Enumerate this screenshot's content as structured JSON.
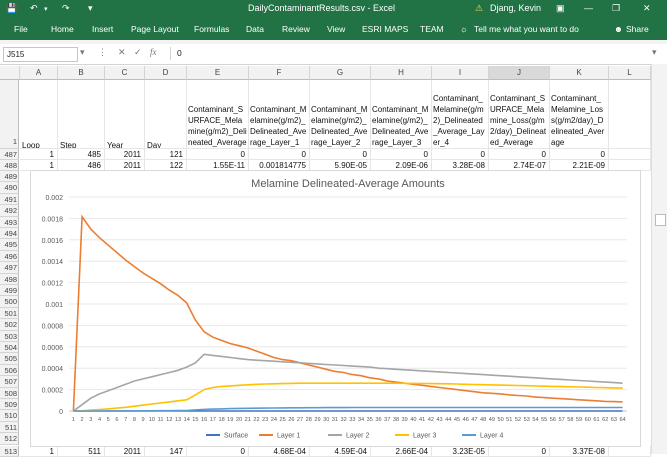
{
  "window": {
    "title": "DailyContaminantResults.csv  -  Excel",
    "warning_icon": "warning-icon",
    "user": "Djang, Kevin"
  },
  "ribbon": {
    "tabs": [
      "File",
      "Home",
      "Insert",
      "Page Layout",
      "Formulas",
      "Data",
      "Review",
      "View",
      "ESRI MAPS",
      "TEAM"
    ],
    "tell_me": "Tell me what you want to do",
    "share": "Share"
  },
  "formula_bar": {
    "name_box": "J515",
    "fx": "fx",
    "value": "0"
  },
  "columns": [
    "A",
    "B",
    "C",
    "D",
    "E",
    "F",
    "G",
    "H",
    "I",
    "J",
    "K",
    "L"
  ],
  "header_row": {
    "row_number": "1",
    "cells": [
      "Loop",
      "Step",
      "Year",
      "Day",
      "Contaminant_SURFACE_Melamine(g/m2)_Delineated_Average",
      "Contaminant_Melamine(g/m2)_Delineated_Average_Layer_1",
      "Contaminant_Melamine(g/m2)_Delineated_Average_Layer_2",
      "Contaminant_Melamine(g/m2)_Delineated_Average_Layer_3",
      "Contaminant_Melamine(g/m2)_Delineated_Average_Layer_4",
      "Contaminant_SURFACE_Melamine_Loss(g/m2/day)_Delineated_Average",
      "Contaminant_Melamine_Loss(g/m2/day)_Delineated_Average"
    ]
  },
  "rows": [
    {
      "n": "487",
      "cells": [
        "1",
        "485",
        "2011",
        "121",
        "0",
        "0",
        "0",
        "0",
        "0",
        "0",
        "0"
      ]
    },
    {
      "n": "488",
      "cells": [
        "1",
        "486",
        "2011",
        "122",
        "1.55E-11",
        "0.001814775",
        "5.90E-05",
        "2.09E-06",
        "3.28E-08",
        "2.74E-07",
        "2.21E-09"
      ]
    },
    {
      "n": "513",
      "cells": [
        "1",
        "511",
        "2011",
        "147",
        "0",
        "4.68E-04",
        "4.59E-04",
        "2.66E-04",
        "3.23E-05",
        "0",
        "3.37E-08"
      ]
    }
  ],
  "hidden_row_numbers": [
    "489",
    "490",
    "491",
    "492",
    "493",
    "494",
    "495",
    "496",
    "497",
    "498",
    "499",
    "500",
    "501",
    "502",
    "503",
    "504",
    "505",
    "506",
    "507",
    "508",
    "509",
    "510",
    "511",
    "512"
  ],
  "colors": {
    "excel_green": "#217346",
    "surface": "#4472c4",
    "layer1": "#ed7d31",
    "layer2": "#a5a5a5",
    "layer3": "#ffc000",
    "layer4": "#5b9bd5"
  },
  "chart_data": {
    "type": "line",
    "title": "Melamine Delineated-Average Amounts",
    "ylim": [
      0,
      0.002
    ],
    "yticks": [
      "0",
      "0.0002",
      "0.0004",
      "0.0006",
      "0.0008",
      "0.001",
      "0.0012",
      "0.0014",
      "0.0016",
      "0.0018",
      "0.002"
    ],
    "x": [
      1,
      2,
      3,
      4,
      5,
      6,
      7,
      8,
      9,
      10,
      11,
      12,
      13,
      14,
      15,
      16,
      17,
      18,
      19,
      20,
      21,
      22,
      23,
      24,
      25,
      26,
      27,
      28,
      29,
      30,
      31,
      32,
      33,
      34,
      35,
      36,
      37,
      38,
      39,
      40,
      41,
      42,
      43,
      44,
      45,
      46,
      47,
      48,
      49,
      50,
      51,
      52,
      53,
      54,
      55,
      56,
      57,
      58,
      59,
      60,
      61,
      62,
      63,
      64
    ],
    "series": [
      {
        "name": "Surface",
        "color": "#4472c4",
        "values": [
          0,
          0,
          0,
          0,
          0,
          0,
          0,
          0,
          0,
          0,
          0,
          0,
          0,
          0,
          0,
          0,
          0,
          0,
          0,
          0,
          0,
          0,
          0,
          0,
          0,
          0,
          0,
          0,
          0,
          0,
          0,
          0,
          0,
          0,
          0,
          0,
          0,
          0,
          0,
          0,
          0,
          0,
          0,
          0,
          0,
          0,
          0,
          0,
          0,
          0,
          0,
          0,
          0,
          0,
          0,
          0,
          0,
          0,
          0,
          0,
          0,
          0,
          0,
          0
        ]
      },
      {
        "name": "Layer 1",
        "color": "#ed7d31",
        "values": [
          0,
          0.001815,
          0.0017,
          0.00162,
          0.00155,
          0.00148,
          0.00141,
          0.00135,
          0.00129,
          0.00124,
          0.00119,
          0.00113,
          0.00108,
          0.00101,
          0.00085,
          0.00074,
          0.00069,
          0.00066,
          0.00063,
          0.00061,
          0.00059,
          0.00056,
          0.00053,
          0.0005,
          0.00048,
          0.00047,
          0.00045,
          0.00043,
          0.00041,
          0.00039,
          0.00037,
          0.00036,
          0.00034,
          0.00033,
          0.00031,
          0.0003,
          0.00028,
          0.00027,
          0.00026,
          0.00025,
          0.00024,
          0.00023,
          0.00022,
          0.00021,
          0.0002,
          0.00019,
          0.00018,
          0.00017,
          0.000165,
          0.00016,
          0.00015,
          0.000145,
          0.00014,
          0.00013,
          0.000125,
          0.00012,
          0.000115,
          0.00011,
          0.000105,
          0.0001,
          9.5e-05,
          9e-05,
          8.8e-05,
          8.5e-05
        ]
      },
      {
        "name": "Layer 2",
        "color": "#a5a5a5",
        "values": [
          0,
          5.9e-05,
          0.00012,
          0.00016,
          0.00019,
          0.00022,
          0.00025,
          0.00028,
          0.0003,
          0.00032,
          0.00034,
          0.00036,
          0.00038,
          0.00041,
          0.00045,
          0.00053,
          0.00052,
          0.00051,
          0.0005,
          0.00049,
          0.00048,
          0.000475,
          0.00047,
          0.000465,
          0.00046,
          0.000455,
          0.00045,
          0.000445,
          0.00044,
          0.000435,
          0.00043,
          0.000425,
          0.00042,
          0.000415,
          0.00041,
          0.0004,
          0.000395,
          0.00039,
          0.000385,
          0.00038,
          0.000375,
          0.00037,
          0.000365,
          0.00036,
          0.000355,
          0.00035,
          0.000345,
          0.00034,
          0.000335,
          0.00033,
          0.000325,
          0.00032,
          0.000315,
          0.00031,
          0.000305,
          0.0003,
          0.000295,
          0.00029,
          0.000285,
          0.00028,
          0.000275,
          0.00027,
          0.000265,
          0.00026
        ]
      },
      {
        "name": "Layer 3",
        "color": "#ffc000",
        "values": [
          0,
          2e-06,
          8e-06,
          1.4e-05,
          2e-05,
          2.7e-05,
          3.5e-05,
          4.5e-05,
          5.5e-05,
          6.5e-05,
          7.5e-05,
          8.5e-05,
          9.5e-05,
          0.000105,
          0.00015,
          0.0002,
          0.00022,
          0.00023,
          0.000235,
          0.00024,
          0.000245,
          0.00025,
          0.000252,
          0.000254,
          0.000256,
          0.000258,
          0.00026,
          0.00026,
          0.00026,
          0.00026,
          0.00026,
          0.00026,
          0.00026,
          0.00026,
          0.00026,
          0.00026,
          0.00026,
          0.00026,
          0.000259,
          0.000258,
          0.000257,
          0.000256,
          0.000255,
          0.000254,
          0.000252,
          0.00025,
          0.000248,
          0.000246,
          0.000244,
          0.000242,
          0.00024,
          0.000238,
          0.000236,
          0.000234,
          0.000232,
          0.00023,
          0.000228,
          0.000226,
          0.000224,
          0.000222,
          0.00022,
          0.000218,
          0.000216,
          0.000214
        ]
      },
      {
        "name": "Layer 4",
        "color": "#5b9bd5",
        "values": [
          0,
          3e-08,
          1e-07,
          2e-07,
          4e-07,
          6e-07,
          8e-07,
          1e-06,
          1.5e-06,
          2e-06,
          2.5e-06,
          3e-06,
          4e-06,
          5e-06,
          1e-05,
          1.5e-05,
          1.8e-05,
          2e-05,
          2.2e-05,
          2.4e-05,
          2.5e-05,
          2.6e-05,
          2.7e-05,
          2.8e-05,
          2.9e-05,
          3e-05,
          3e-05,
          3.1e-05,
          3.1e-05,
          3.2e-05,
          3.2e-05,
          3.2e-05,
          3.3e-05,
          3.3e-05,
          3.3e-05,
          3.3e-05,
          3.3e-05,
          3.3e-05,
          3.3e-05,
          3.3e-05,
          3.3e-05,
          3.3e-05,
          3.3e-05,
          3.3e-05,
          3.3e-05,
          3.3e-05,
          3.3e-05,
          3.3e-05,
          3.3e-05,
          3.3e-05,
          3.3e-05,
          3.3e-05,
          3.3e-05,
          3.3e-05,
          3.3e-05,
          3.3e-05,
          3.3e-05,
          3.3e-05,
          3.3e-05,
          3.3e-05,
          3.3e-05,
          3.3e-05,
          3.3e-05,
          3.3e-05
        ]
      }
    ],
    "legend": "bottom",
    "grid": true
  }
}
